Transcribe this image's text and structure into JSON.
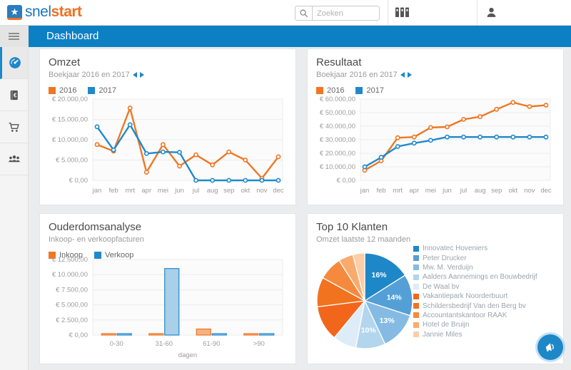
{
  "header": {
    "logo_star": "★",
    "logo_snel": "snel",
    "logo_start": "start",
    "search_placeholder": "Zoeken"
  },
  "nav": {
    "title": "Dashboard"
  },
  "sidebar": {
    "items": [
      {
        "icon": "gauge-icon",
        "active": true
      },
      {
        "icon": "ledger-euro-icon",
        "active": false
      },
      {
        "icon": "cart-icon",
        "active": false
      },
      {
        "icon": "people-icon",
        "active": false
      }
    ]
  },
  "cards": {
    "omzet": {
      "title": "Omzet",
      "subtitle": "Boekjaar 2016 en 2017"
    },
    "resultaat": {
      "title": "Resultaat",
      "subtitle": "Boekjaar 2016 en 2017"
    },
    "ouderdom": {
      "title": "Ouderdomsanalyse",
      "subtitle": "Inkoop- en verkoopfacturen"
    },
    "top10": {
      "title": "Top 10 Klanten",
      "subtitle": "Omzet laatste 12 maanden"
    }
  },
  "colors": {
    "accent_blue": "#1e87c8",
    "accent_orange": "#f07622",
    "navbar_blue": "#0d80c4"
  },
  "chart_data": [
    {
      "id": "omzet",
      "type": "line",
      "title": "Omzet",
      "subtitle": "Boekjaar 2016 en 2017",
      "categories": [
        "jan",
        "feb",
        "mrt",
        "apr",
        "mei",
        "jun",
        "jul",
        "aug",
        "sep",
        "okt",
        "nov",
        "dec"
      ],
      "series": [
        {
          "name": "2016",
          "color": "#f07622",
          "values": [
            8800,
            7200,
            17800,
            2000,
            8800,
            3500,
            6300,
            3800,
            7000,
            5000,
            500,
            5800
          ]
        },
        {
          "name": "2017",
          "color": "#2089ca",
          "values": [
            13200,
            7500,
            13700,
            6600,
            7000,
            6900,
            0,
            0,
            0,
            0,
            0,
            0
          ]
        }
      ],
      "ylim": [
        0,
        20000
      ],
      "yticks": [
        {
          "v": 20000,
          "label": "€ 20.000,00"
        },
        {
          "v": 15000,
          "label": "€ 15.000,00"
        },
        {
          "v": 10000,
          "label": "€ 10.000,00"
        },
        {
          "v": 5000,
          "label": "€ 5.000,00"
        },
        {
          "v": 0,
          "label": "€ 0,00"
        }
      ]
    },
    {
      "id": "resultaat",
      "type": "line",
      "title": "Resultaat",
      "subtitle": "Boekjaar 2016 en 2017",
      "categories": [
        "jan",
        "feb",
        "mrt",
        "apr",
        "mei",
        "jun",
        "jul",
        "aug",
        "sep",
        "okt",
        "nov",
        "dec"
      ],
      "series": [
        {
          "name": "2016",
          "color": "#f07622",
          "values": [
            7500,
            14500,
            31500,
            32000,
            39000,
            39500,
            45000,
            47000,
            52500,
            57500,
            54500,
            55500
          ]
        },
        {
          "name": "2017",
          "color": "#2089ca",
          "values": [
            10000,
            17000,
            25000,
            27500,
            29500,
            32000,
            32000,
            32000,
            32000,
            32000,
            32000,
            32000
          ]
        }
      ],
      "ylim": [
        0,
        60000
      ],
      "yticks": [
        {
          "v": 60000,
          "label": "€ 60.000,00"
        },
        {
          "v": 50000,
          "label": "€ 50.000,00"
        },
        {
          "v": 40000,
          "label": "€ 40.000,00"
        },
        {
          "v": 30000,
          "label": "€ 30.000,00"
        },
        {
          "v": 20000,
          "label": "€ 20.000,00"
        },
        {
          "v": 10000,
          "label": "€ 10.000,00"
        },
        {
          "v": 0,
          "label": "€ 0,00"
        }
      ]
    },
    {
      "id": "ouderdom",
      "type": "bar",
      "title": "Ouderdomsanalyse",
      "subtitle": "Inkoop- en verkoopfacturen",
      "categories": [
        "0-30",
        "31-60",
        "61-90",
        ">90"
      ],
      "xlabel": "dagen",
      "series": [
        {
          "name": "Inkoop",
          "color": "#f07622",
          "fill": "#f5b183",
          "values": [
            100,
            100,
            1000,
            100
          ]
        },
        {
          "name": "Verkoop",
          "color": "#2089ca",
          "fill": "#a9cfe9",
          "values": [
            100,
            11000,
            100,
            100
          ]
        }
      ],
      "ylim": [
        0,
        12500
      ],
      "yticks": [
        {
          "v": 12500,
          "label": "€ 12.500,00"
        },
        {
          "v": 10000,
          "label": "€ 10.000,00"
        },
        {
          "v": 7500,
          "label": "€ 7.500,00"
        },
        {
          "v": 5000,
          "label": "€ 5.000,00"
        },
        {
          "v": 2500,
          "label": "€ 2.500,00"
        },
        {
          "v": 0,
          "label": "€ 0,00"
        }
      ]
    },
    {
      "id": "top10",
      "type": "pie",
      "title": "Top 10 Klanten",
      "subtitle": "Omzet laatste 12 maanden",
      "slices": [
        {
          "label": "Innovatec Hoveniers",
          "value": 16,
          "pct_label": "16%",
          "color": "#1e87c8"
        },
        {
          "label": "Peter Drucker",
          "value": 14,
          "pct_label": "14%",
          "color": "#549fd6"
        },
        {
          "label": "Mw. M. Verduijn",
          "value": 13,
          "pct_label": "13%",
          "color": "#85bbe3"
        },
        {
          "label": "Aalders Aannemings en Bouwbedrijf",
          "value": 10,
          "pct_label": "10%",
          "color": "#b3d5ee"
        },
        {
          "label": "De Waal bv",
          "value": 8,
          "pct_label": "",
          "color": "#ddecf8"
        },
        {
          "label": "Vakantiepark Noorderbuurt",
          "value": 12,
          "pct_label": "",
          "color": "#f2661c"
        },
        {
          "label": "Schildersbedrijf Van den Berg bv",
          "value": 10,
          "pct_label": "",
          "color": "#f1731f"
        },
        {
          "label": "Accountantskantoor RAAK",
          "value": 8,
          "pct_label": "",
          "color": "#f58a3e"
        },
        {
          "label": "Hotel de Bruijn",
          "value": 5,
          "pct_label": "",
          "color": "#f9ab6e"
        },
        {
          "label": "Jannie Miles",
          "value": 4,
          "pct_label": "",
          "color": "#fccda6"
        }
      ]
    }
  ]
}
